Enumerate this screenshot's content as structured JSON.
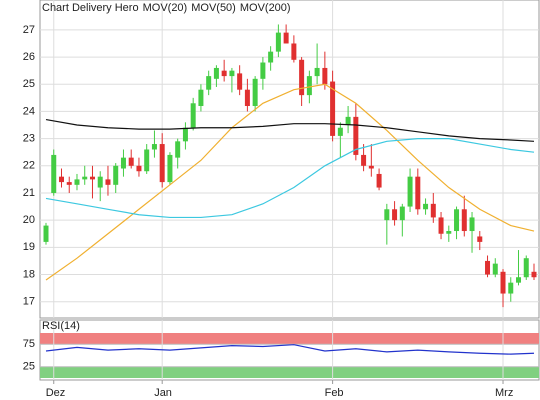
{
  "chart_data": [
    {
      "type": "candlestick",
      "title": "Chart Delivery Hero",
      "categories": [
        null,
        "Dez",
        null,
        null,
        null,
        null,
        null,
        null,
        null,
        null,
        null,
        null,
        null,
        null,
        null,
        "Jan",
        null,
        null,
        null,
        null,
        null,
        null,
        null,
        null,
        null,
        null,
        null,
        null,
        null,
        null,
        null,
        null,
        null,
        null,
        null,
        null,
        null,
        "Feb",
        null,
        null,
        null,
        null,
        null,
        null,
        null,
        null,
        null,
        null,
        null,
        null,
        null,
        null,
        null,
        null,
        null,
        null,
        null,
        null,
        null,
        "Mrz",
        null,
        null,
        null,
        null
      ],
      "open": [
        19.2,
        21.0,
        21.6,
        21.4,
        21.3,
        21.5,
        21.6,
        21.2,
        21.5,
        21.3,
        21.9,
        22.3,
        22.0,
        21.8,
        22.6,
        22.8,
        21.4,
        22.3,
        22.9,
        23.4,
        24.2,
        24.8,
        25.2,
        25.5,
        25.3,
        25.4,
        24.8,
        24.2,
        25.2,
        25.8,
        26.2,
        26.9,
        26.5,
        25.9,
        24.6,
        25.3,
        25.6,
        25.1,
        23.1,
        23.5,
        23.8,
        22.4,
        22.0,
        21.7,
        20.0,
        20.4,
        20.0,
        20.5,
        21.6,
        20.4,
        20.6,
        20.1,
        19.5,
        19.6,
        20.4,
        19.6,
        19.4,
        18.5,
        18.0,
        18.1,
        17.3,
        17.7,
        17.9,
        18.1
      ],
      "high": [
        19.9,
        22.6,
        21.9,
        21.6,
        21.7,
        22.0,
        22.0,
        21.8,
        22.0,
        22.1,
        22.6,
        22.6,
        22.3,
        22.8,
        23.3,
        23.2,
        22.5,
        23.0,
        23.6,
        24.5,
        25.0,
        25.5,
        25.7,
        25.9,
        25.6,
        25.7,
        25.2,
        25.3,
        26.0,
        26.4,
        27.2,
        27.2,
        26.8,
        26.0,
        25.5,
        26.5,
        26.2,
        25.5,
        23.6,
        24.2,
        24.3,
        22.8,
        22.8,
        21.9,
        20.6,
        20.7,
        20.6,
        21.9,
        21.9,
        20.8,
        21.0,
        20.3,
        19.8,
        20.5,
        20.9,
        20.3,
        19.6,
        18.7,
        18.6,
        18.2,
        17.9,
        18.9,
        18.7,
        18.4
      ],
      "low": [
        19.1,
        20.9,
        21.2,
        21.0,
        21.1,
        21.3,
        20.8,
        20.7,
        20.9,
        21.0,
        21.6,
        21.9,
        21.6,
        21.7,
        22.3,
        21.2,
        21.3,
        21.9,
        22.6,
        23.3,
        24.0,
        24.6,
        24.9,
        25.1,
        24.7,
        24.6,
        24.0,
        24.0,
        24.8,
        25.5,
        26.0,
        26.5,
        25.8,
        24.2,
        24.3,
        25.0,
        24.8,
        22.9,
        22.3,
        23.2,
        22.2,
        21.8,
        21.6,
        21.1,
        19.1,
        19.8,
        19.4,
        20.3,
        20.2,
        20.2,
        19.9,
        19.3,
        19.2,
        19.3,
        19.4,
        18.8,
        18.9,
        17.9,
        17.9,
        16.8,
        17.0,
        17.6,
        17.8,
        17.8
      ],
      "close": [
        19.8,
        22.4,
        21.4,
        21.3,
        21.5,
        21.6,
        21.5,
        21.6,
        21.3,
        22.0,
        22.3,
        22.0,
        21.8,
        22.6,
        22.8,
        21.4,
        22.4,
        22.9,
        23.4,
        24.3,
        24.8,
        25.3,
        25.6,
        25.3,
        25.5,
        24.8,
        24.2,
        25.2,
        25.8,
        26.2,
        26.9,
        26.5,
        25.9,
        24.6,
        25.3,
        25.6,
        25.0,
        23.1,
        23.4,
        23.8,
        22.4,
        22.0,
        21.9,
        21.2,
        20.4,
        20.0,
        20.5,
        21.6,
        20.4,
        20.6,
        20.1,
        19.5,
        19.6,
        20.4,
        19.6,
        20.1,
        19.2,
        18.0,
        18.4,
        17.3,
        17.7,
        17.9,
        18.6,
        17.9
      ],
      "up_color": "#44cc44",
      "down_color": "#e03030",
      "series": [
        {
          "name": "MOV(20)",
          "color": "#f0b030",
          "x": [
            0,
            4,
            8,
            12,
            16,
            20,
            24,
            28,
            32,
            36,
            40,
            44,
            48,
            52,
            56,
            60,
            63
          ],
          "values": [
            17.8,
            18.6,
            19.5,
            20.4,
            21.3,
            22.2,
            23.4,
            24.3,
            24.8,
            25.0,
            24.3,
            23.3,
            22.2,
            21.2,
            20.4,
            19.8,
            19.6
          ]
        },
        {
          "name": "MOV(50)",
          "color": "#3cc8e0",
          "x": [
            0,
            4,
            8,
            12,
            16,
            20,
            24,
            28,
            32,
            36,
            40,
            44,
            48,
            52,
            56,
            60,
            63
          ],
          "values": [
            20.8,
            20.6,
            20.4,
            20.2,
            20.1,
            20.1,
            20.2,
            20.6,
            21.2,
            22.0,
            22.6,
            22.9,
            23.0,
            23.0,
            22.8,
            22.6,
            22.5
          ]
        },
        {
          "name": "MOV(200)",
          "color": "#111111",
          "x": [
            0,
            4,
            8,
            12,
            16,
            20,
            24,
            28,
            32,
            36,
            40,
            44,
            48,
            52,
            56,
            60,
            63
          ],
          "values": [
            23.7,
            23.5,
            23.4,
            23.35,
            23.35,
            23.4,
            23.4,
            23.45,
            23.55,
            23.55,
            23.5,
            23.4,
            23.25,
            23.1,
            23.0,
            22.95,
            22.9
          ]
        }
      ],
      "ylim": [
        16.4,
        28.1
      ],
      "yticks": [
        17,
        18,
        19,
        20,
        21,
        22,
        23,
        24,
        25,
        26,
        27
      ],
      "grid": true
    },
    {
      "type": "line",
      "title": "RSI(14)",
      "series": [
        {
          "color": "#2233cc",
          "x": [
            0,
            4,
            8,
            12,
            16,
            20,
            24,
            28,
            32,
            36,
            40,
            44,
            48,
            52,
            56,
            60,
            63
          ],
          "values": [
            60,
            68,
            62,
            65,
            62,
            67,
            72,
            70,
            74,
            60,
            65,
            58,
            62,
            58,
            55,
            53,
            55
          ]
        }
      ],
      "ylim": [
        0,
        100
      ],
      "yticks": [
        25,
        75
      ],
      "upper_band_color": "#f08080",
      "lower_band_color": "#80d080"
    }
  ]
}
